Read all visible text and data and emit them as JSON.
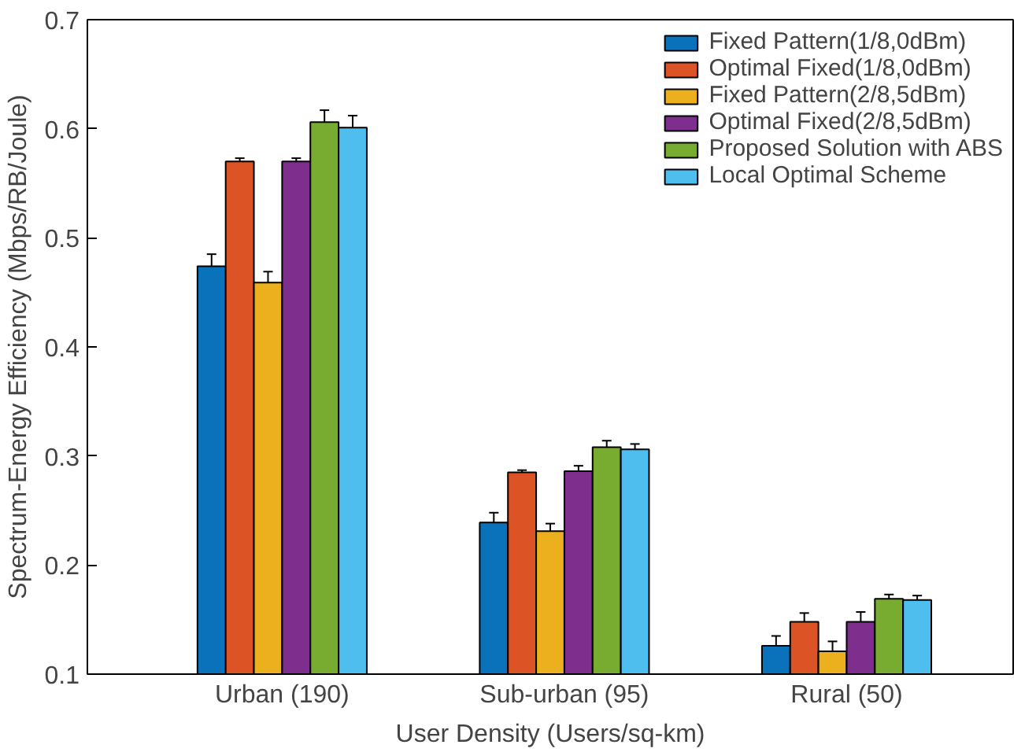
{
  "chart_data": {
    "type": "bar",
    "xlabel": "User Density (Users/sq-km)",
    "ylabel": "Spectrum-Energy Efficiency (Mbps/RB/Joule)",
    "categories": [
      "Urban (190)",
      "Sub-urban (95)",
      "Rural (50)"
    ],
    "series": [
      {
        "name": "Fixed Pattern(1/8,0dBm)",
        "color": "#0a72ba",
        "values": [
          0.474,
          0.239,
          0.126
        ],
        "errors": [
          0.011,
          0.009,
          0.009
        ]
      },
      {
        "name": "Optimal Fixed(1/8,0dBm)",
        "color": "#dc5425",
        "values": [
          0.57,
          0.285,
          0.148
        ],
        "errors": [
          0.003,
          0.002,
          0.008
        ]
      },
      {
        "name": "Fixed Pattern(2/8,5dBm)",
        "color": "#ecb01f",
        "values": [
          0.459,
          0.231,
          0.121
        ],
        "errors": [
          0.01,
          0.007,
          0.009
        ]
      },
      {
        "name": "Optimal Fixed(2/8,5dBm)",
        "color": "#7e2f8e",
        "values": [
          0.57,
          0.286,
          0.148
        ],
        "errors": [
          0.003,
          0.005,
          0.009
        ]
      },
      {
        "name": "Proposed Solution with ABS",
        "color": "#77ac30",
        "values": [
          0.606,
          0.308,
          0.169
        ],
        "errors": [
          0.011,
          0.006,
          0.004
        ]
      },
      {
        "name": "Local Optimal Scheme",
        "color": "#4dbeee",
        "values": [
          0.601,
          0.306,
          0.168
        ],
        "errors": [
          0.011,
          0.005,
          0.004
        ]
      }
    ],
    "ylim": [
      0.1,
      0.7
    ],
    "yticks": [
      0.1,
      0.2,
      0.3,
      0.4,
      0.5,
      0.6,
      0.7
    ],
    "grid": false,
    "legend": "top right"
  }
}
